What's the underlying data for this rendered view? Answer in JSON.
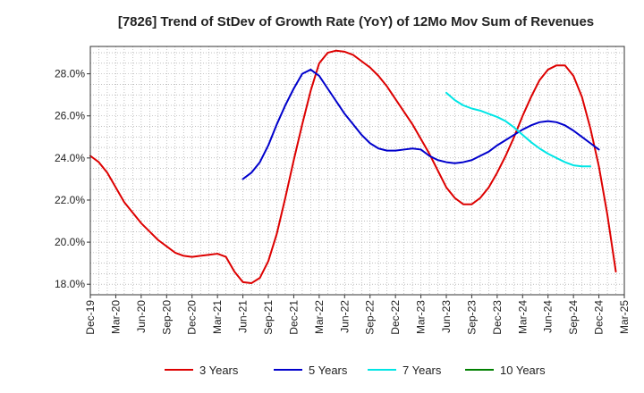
{
  "chart_data": {
    "type": "line",
    "title": "[7826]  Trend of StDev of Growth Rate (YoY) of 12Mo Mov Sum of Revenues",
    "xlabel": "",
    "ylabel": "",
    "x_tick_labels": [
      "Dec-19",
      "Mar-20",
      "Jun-20",
      "Sep-20",
      "Dec-20",
      "Mar-21",
      "Jun-21",
      "Sep-21",
      "Dec-21",
      "Mar-22",
      "Jun-22",
      "Sep-22",
      "Dec-22",
      "Mar-23",
      "Jun-23",
      "Sep-23",
      "Dec-23",
      "Mar-24",
      "Jun-24",
      "Sep-24",
      "Dec-24",
      "Mar-25"
    ],
    "y_tick_labels": [
      "18.0%",
      "20.0%",
      "22.0%",
      "24.0%",
      "26.0%",
      "28.0%"
    ],
    "ylim": [
      17.5,
      29.3
    ],
    "grid": true,
    "legend_position": "bottom",
    "series": [
      {
        "name": "3 Years",
        "color": "#dd0000",
        "start_month_index": 0,
        "values": [
          24.1,
          23.8,
          23.3,
          22.6,
          21.9,
          21.4,
          20.9,
          20.5,
          20.1,
          19.8,
          19.5,
          19.35,
          19.3,
          19.35,
          19.4,
          19.45,
          19.3,
          18.6,
          18.1,
          18.05,
          18.3,
          19.1,
          20.4,
          22.1,
          23.9,
          25.6,
          27.2,
          28.5,
          29.0,
          29.1,
          29.05,
          28.9,
          28.6,
          28.3,
          27.9,
          27.4,
          26.8,
          26.2,
          25.6,
          24.9,
          24.2,
          23.4,
          22.6,
          22.1,
          21.8,
          21.8,
          22.1,
          22.6,
          23.3,
          24.1,
          25.0,
          26.0,
          26.9,
          27.7,
          28.2,
          28.4,
          28.4,
          27.9,
          26.9,
          25.4,
          23.6,
          21.3,
          18.6
        ]
      },
      {
        "name": "5 Years",
        "color": "#0000cc",
        "start_month_index": 18,
        "values": [
          23.0,
          23.3,
          23.8,
          24.6,
          25.6,
          26.5,
          27.3,
          28.0,
          28.2,
          27.9,
          27.3,
          26.7,
          26.1,
          25.6,
          25.1,
          24.7,
          24.45,
          24.35,
          24.35,
          24.4,
          24.45,
          24.4,
          24.1,
          23.9,
          23.8,
          23.75,
          23.8,
          23.9,
          24.1,
          24.3,
          24.6,
          24.85,
          25.1,
          25.35,
          25.55,
          25.7,
          25.75,
          25.7,
          25.55,
          25.3,
          25.0,
          24.7,
          24.4
        ]
      },
      {
        "name": "7 Years",
        "color": "#00e5e5",
        "start_month_index": 42,
        "values": [
          27.1,
          26.75,
          26.5,
          26.35,
          26.25,
          26.1,
          25.95,
          25.75,
          25.45,
          25.1,
          24.75,
          24.45,
          24.2,
          24.0,
          23.8,
          23.65,
          23.6,
          23.6
        ]
      },
      {
        "name": "10 Years",
        "color": "#008000",
        "start_month_index": 0,
        "values": []
      }
    ]
  }
}
